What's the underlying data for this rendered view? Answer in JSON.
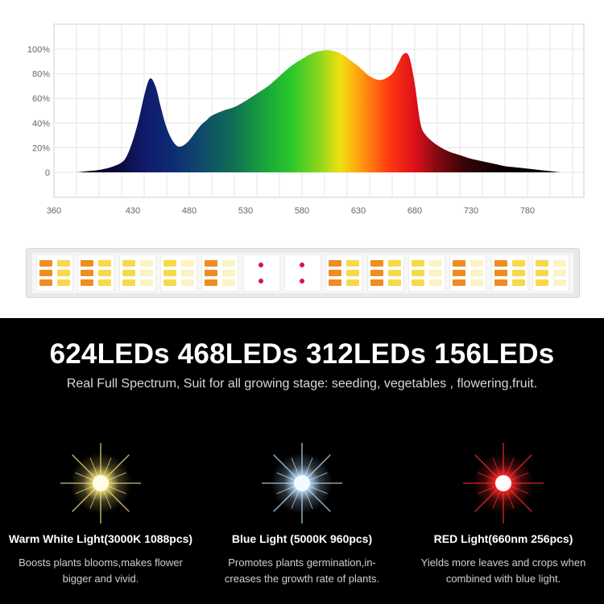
{
  "chart_data": {
    "type": "area",
    "xticks": [
      "360",
      "430",
      "480",
      "530",
      "580",
      "630",
      "680",
      "730",
      "780"
    ],
    "xtick_values": [
      360,
      430,
      480,
      530,
      580,
      630,
      680,
      730,
      780
    ],
    "yticks": [
      "0",
      "20%",
      "40%",
      "60%",
      "80%",
      "100%"
    ],
    "ytick_values": [
      0,
      20,
      40,
      60,
      80,
      100
    ],
    "xlim": [
      360,
      830
    ],
    "ylim": [
      0,
      100
    ],
    "grid": true,
    "x": [
      380,
      390,
      400,
      410,
      420,
      425,
      430,
      435,
      440,
      445,
      450,
      455,
      460,
      465,
      470,
      475,
      480,
      485,
      490,
      495,
      500,
      510,
      520,
      530,
      540,
      550,
      560,
      570,
      580,
      590,
      600,
      605,
      610,
      615,
      620,
      630,
      640,
      650,
      660,
      665,
      670,
      675,
      680,
      685,
      690,
      700,
      710,
      720,
      730,
      740,
      750,
      760,
      770,
      780,
      790,
      800,
      810,
      820
    ],
    "y": [
      0,
      1,
      2,
      4,
      8,
      14,
      26,
      42,
      62,
      76,
      70,
      52,
      36,
      26,
      21,
      22,
      26,
      32,
      38,
      42,
      46,
      50,
      53,
      58,
      64,
      70,
      78,
      86,
      92,
      97,
      99,
      99,
      98,
      96,
      93,
      86,
      78,
      75,
      80,
      88,
      96,
      94,
      72,
      40,
      30,
      22,
      17,
      14,
      11,
      9,
      7,
      5,
      4,
      3,
      2,
      1,
      0,
      0
    ]
  },
  "strip": {
    "modules": [
      "wo",
      "wo",
      "yw",
      "yw",
      "ow",
      "r",
      "r",
      "wo",
      "wo",
      "yw",
      "ow",
      "wo",
      "yw"
    ],
    "colors": {
      "warm": "#f7d94a",
      "orange": "#f08c22",
      "white": "#fbf3c2",
      "red": "#d4144f"
    }
  },
  "promo": {
    "headline": "624LEDs 468LEDs 312LEDs 156LEDs",
    "subtitle": "Real Full Spectrum,  Suit for all growing stage: seeding, vegetables , flowering,fruit."
  },
  "lights": [
    {
      "title": "Warm White Light(3000K 1088pcs)",
      "line1": "Boosts plants blooms,makes flower",
      "line2": "bigger and vivid.",
      "glow": "#f6e27a",
      "core": "#fffde8",
      "icon": "warm-white-led-icon"
    },
    {
      "title": "Blue Light (5000K 960pcs)",
      "line1": "Promotes plants germination,in-",
      "line2": "creases the growth rate of plants.",
      "glow": "#bfe2ff",
      "core": "#eefbff",
      "icon": "blue-led-icon"
    },
    {
      "title": "RED Light(660nm 256pcs)",
      "line1": "Yields more leaves and crops when",
      "line2": "combined with blue light.",
      "glow": "#ff2a2a",
      "core": "#ffffff",
      "icon": "red-led-icon"
    }
  ]
}
